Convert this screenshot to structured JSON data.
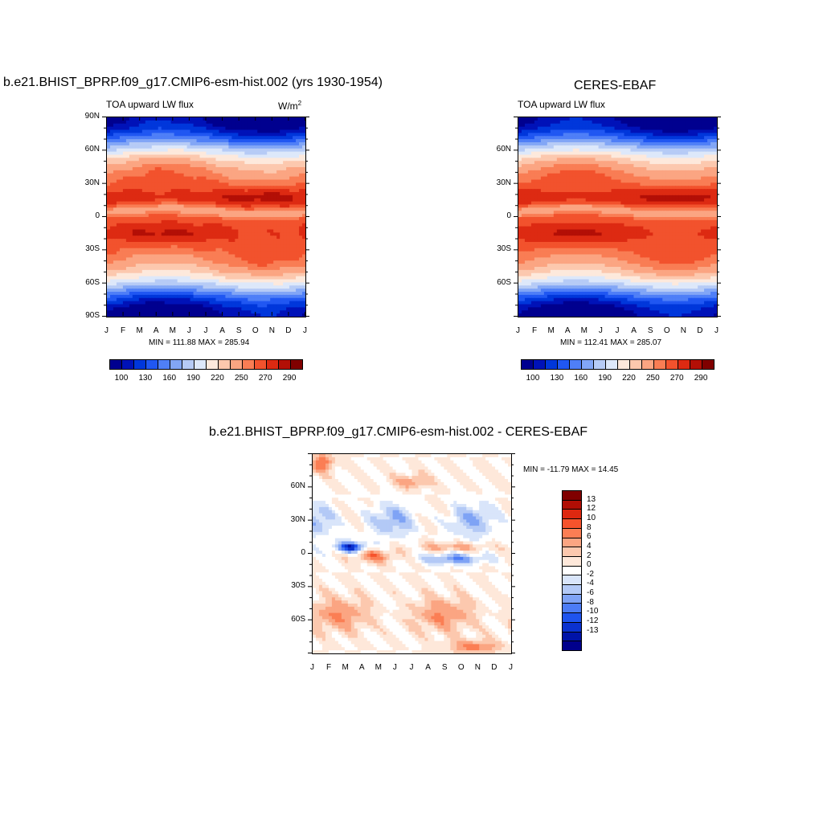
{
  "panels": [
    {
      "id": "model",
      "title": "b.e21.BHIST_BPRP.f09_g17.CMIP6-esm-hist.002 (yrs 1930-1954)",
      "subtitle": "TOA upward LW flux",
      "units": "W/m",
      "units_sup": "2",
      "minmax": "MIN = 111.88 MAX = 285.94"
    },
    {
      "id": "obs",
      "title": "CERES-EBAF",
      "subtitle": "TOA upward LW flux",
      "units": "",
      "units_sup": "",
      "minmax": "MIN = 112.41 MAX = 285.07"
    },
    {
      "id": "diff",
      "title": "b.e21.BHIST_BPRP.f09_g17.CMIP6-esm-hist.002 - CERES-EBAF",
      "minmax": "MIN = -11.79 MAX =  14.45"
    }
  ],
  "axes": {
    "x_ticks": [
      "J",
      "F",
      "M",
      "A",
      "M",
      "J",
      "J",
      "A",
      "S",
      "O",
      "N",
      "D",
      "J"
    ],
    "y_ticks_full": [
      "90N",
      "60N",
      "30N",
      "0",
      "30S",
      "60S",
      "90S"
    ],
    "y_ticks_inner": [
      "60N",
      "30N",
      "0",
      "30S",
      "60S"
    ]
  },
  "colorbars": {
    "abs_labels": [
      "100",
      "130",
      "160",
      "190",
      "220",
      "250",
      "270",
      "290"
    ],
    "abs_colors": [
      "#00008f",
      "#0012b8",
      "#0037db",
      "#2057f2",
      "#4f7ff7",
      "#82a6f6",
      "#b6cbf6",
      "#dde8fa",
      "#fde9dc",
      "#fcc8ae",
      "#fba582",
      "#f97d54",
      "#f2522d",
      "#dd2a12",
      "#b30f06",
      "#800000"
    ],
    "diff_labels": [
      "13",
      "12",
      "10",
      "8",
      "6",
      "4",
      "2",
      "0",
      "-2",
      "-4",
      "-6",
      "-8",
      "-10",
      "-12",
      "-13"
    ],
    "diff_colors": [
      "#800000",
      "#b10e05",
      "#dd2810",
      "#f6532c",
      "#fb7e54",
      "#fba582",
      "#fcc8ae",
      "#fee8da",
      "#ffffff",
      "#d9e5fa",
      "#b3c9f6",
      "#7fa3f5",
      "#4c7cf6",
      "#1f54ee",
      "#0b32cf",
      "#0013a8",
      "#00008c"
    ]
  },
  "chart_data": [
    {
      "type": "heatmap",
      "title": "b.e21.BHIST_BPRP.f09_g17.CMIP6-esm-hist.002 (yrs 1930-1954)",
      "subtitle": "TOA upward LW flux",
      "units": "W/m2",
      "x_ticks": [
        "J",
        "F",
        "M",
        "A",
        "M",
        "J",
        "J",
        "A",
        "S",
        "O",
        "N",
        "D",
        "J"
      ],
      "y_ticks": [
        "90N",
        "60N",
        "30N",
        "0",
        "30S",
        "60S",
        "90S"
      ],
      "ylim": [
        -90,
        90
      ],
      "min": 111.88,
      "max": 285.94,
      "levels": [
        100,
        115,
        130,
        145,
        160,
        175,
        190,
        205,
        220,
        235,
        250,
        260,
        270,
        280,
        290
      ]
    },
    {
      "type": "heatmap",
      "title": "CERES-EBAF",
      "subtitle": "TOA upward LW flux",
      "x_ticks": [
        "J",
        "F",
        "M",
        "A",
        "M",
        "J",
        "J",
        "A",
        "S",
        "O",
        "N",
        "D",
        "J"
      ],
      "y_ticks": [
        "60N",
        "30N",
        "0",
        "30S",
        "60S"
      ],
      "ylim": [
        -90,
        90
      ],
      "min": 112.41,
      "max": 285.07,
      "levels": [
        100,
        115,
        130,
        145,
        160,
        175,
        190,
        205,
        220,
        235,
        250,
        260,
        270,
        280,
        290
      ]
    },
    {
      "type": "heatmap",
      "title": "b.e21.BHIST_BPRP.f09_g17.CMIP6-esm-hist.002 - CERES-EBAF",
      "x_ticks": [
        "J",
        "F",
        "M",
        "A",
        "M",
        "J",
        "J",
        "A",
        "S",
        "O",
        "N",
        "D",
        "J"
      ],
      "y_ticks": [
        "60N",
        "30N",
        "0",
        "30S",
        "60S"
      ],
      "ylim": [
        -90,
        90
      ],
      "min": -11.79,
      "max": 14.45,
      "levels": [
        -13,
        -12,
        -10,
        -8,
        -6,
        -4,
        -2,
        0,
        2,
        4,
        6,
        8,
        10,
        12,
        13
      ]
    }
  ]
}
